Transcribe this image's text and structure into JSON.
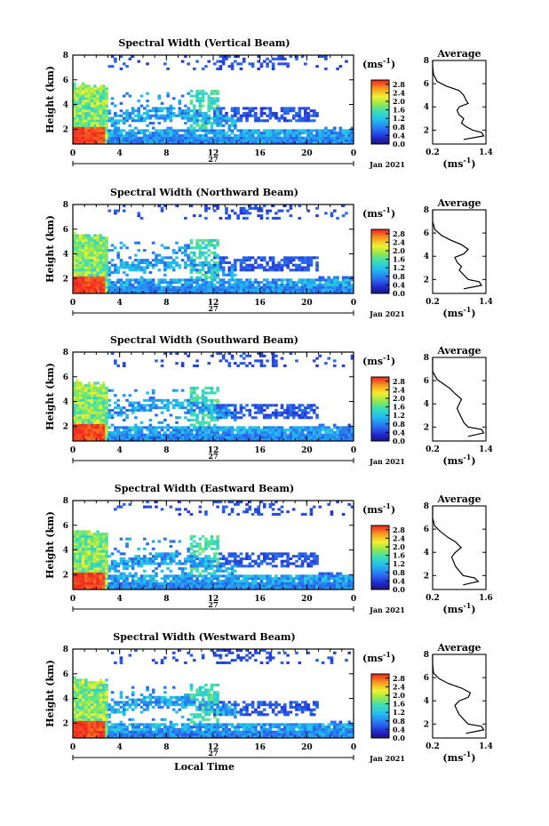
{
  "figure": {
    "xlabel": "Local Time",
    "date_label": "Jan 2021",
    "day_label": "27",
    "unit_label": "(ms",
    "unit_sup": "-1",
    "unit_close": ")"
  },
  "chart_data": [
    {
      "type": "heatmap",
      "title": "Spectral Width (Vertical Beam)",
      "ylabel": "Height (km)",
      "xlim": [
        0,
        24
      ],
      "ylim": [
        0.8,
        8
      ],
      "xticks": [
        "0",
        "4",
        "8",
        "12",
        "16",
        "20",
        "0"
      ],
      "yticks": [
        "2",
        "4",
        "6",
        "8"
      ],
      "colorbar": {
        "ticks": [
          "0.0",
          "0.4",
          "0.8",
          "1.2",
          "1.6",
          "2.0",
          "2.4",
          "2.8"
        ],
        "range": [
          0,
          3.0
        ]
      },
      "average": {
        "title": "Average",
        "xlim": [
          0.2,
          1.4
        ],
        "xticks": [
          "0.2",
          "1.4"
        ],
        "yticks": [
          "2",
          "4",
          "6",
          "8"
        ],
        "profile": [
          [
            0.9,
            1.2
          ],
          [
            1.35,
            1.5
          ],
          [
            1.3,
            1.8
          ],
          [
            1.1,
            2.0
          ],
          [
            0.95,
            2.3
          ],
          [
            0.85,
            2.6
          ],
          [
            0.9,
            3.0
          ],
          [
            0.8,
            3.3
          ],
          [
            0.75,
            3.7
          ],
          [
            0.8,
            4.0
          ],
          [
            1.0,
            4.3
          ],
          [
            0.95,
            4.6
          ],
          [
            0.9,
            5.0
          ],
          [
            0.8,
            5.4
          ],
          [
            0.5,
            5.8
          ],
          [
            0.3,
            6.2
          ],
          [
            0.22,
            6.8
          ],
          [
            0.2,
            7.5
          ],
          [
            0.2,
            8.0
          ]
        ]
      }
    },
    {
      "type": "heatmap",
      "title": "Spectral Width (Northward Beam)",
      "ylabel": "Height (km)",
      "xlim": [
        0,
        24
      ],
      "ylim": [
        0.8,
        8
      ],
      "xticks": [
        "0",
        "4",
        "8",
        "12",
        "16",
        "20",
        "0"
      ],
      "yticks": [
        "2",
        "4",
        "6",
        "8"
      ],
      "colorbar": {
        "ticks": [
          "0.0",
          "0.4",
          "0.8",
          "1.2",
          "1.6",
          "2.0",
          "2.4",
          "2.8"
        ],
        "range": [
          0,
          3.0
        ]
      },
      "average": {
        "title": "Average",
        "xlim": [
          0.2,
          1.4
        ],
        "xticks": [
          "0.2",
          "1.4"
        ],
        "yticks": [
          "2",
          "4",
          "6",
          "8"
        ],
        "profile": [
          [
            0.9,
            1.2
          ],
          [
            1.3,
            1.5
          ],
          [
            1.25,
            1.8
          ],
          [
            1.0,
            2.0
          ],
          [
            0.9,
            2.4
          ],
          [
            0.8,
            2.8
          ],
          [
            0.85,
            3.1
          ],
          [
            0.75,
            3.5
          ],
          [
            0.7,
            3.9
          ],
          [
            0.9,
            4.2
          ],
          [
            1.0,
            4.6
          ],
          [
            0.85,
            5.0
          ],
          [
            0.6,
            5.4
          ],
          [
            0.4,
            5.8
          ],
          [
            0.25,
            6.3
          ],
          [
            0.2,
            7.0
          ],
          [
            0.2,
            8.0
          ]
        ]
      }
    },
    {
      "type": "heatmap",
      "title": "Spectral Width (Southward Beam)",
      "ylabel": "Height (km)",
      "xlim": [
        0,
        24
      ],
      "ylim": [
        0.8,
        8
      ],
      "xticks": [
        "0",
        "4",
        "8",
        "12",
        "16",
        "20",
        "0"
      ],
      "yticks": [
        "2",
        "4",
        "6",
        "8"
      ],
      "colorbar": {
        "ticks": [
          "0.0",
          "0.4",
          "0.8",
          "1.2",
          "1.6",
          "2.0",
          "2.4",
          "2.8"
        ],
        "range": [
          0,
          3.0
        ]
      },
      "average": {
        "title": "Average",
        "xlim": [
          0.2,
          1.4
        ],
        "xticks": [
          "0.2",
          "1.4"
        ],
        "yticks": [
          "2",
          "4",
          "6",
          "8"
        ],
        "profile": [
          [
            1.0,
            1.2
          ],
          [
            1.35,
            1.5
          ],
          [
            1.3,
            1.8
          ],
          [
            1.0,
            2.0
          ],
          [
            0.9,
            2.4
          ],
          [
            0.85,
            2.8
          ],
          [
            0.8,
            3.2
          ],
          [
            0.75,
            3.6
          ],
          [
            0.8,
            4.0
          ],
          [
            0.85,
            4.4
          ],
          [
            0.7,
            4.9
          ],
          [
            0.6,
            5.3
          ],
          [
            0.45,
            5.7
          ],
          [
            0.3,
            6.1
          ],
          [
            0.2,
            6.8
          ],
          [
            0.2,
            8.0
          ]
        ]
      }
    },
    {
      "type": "heatmap",
      "title": "Spectral Width (Eastward Beam)",
      "ylabel": "Height (km)",
      "xlim": [
        0,
        24
      ],
      "ylim": [
        0.8,
        8
      ],
      "xticks": [
        "0",
        "4",
        "8",
        "12",
        "16",
        "20",
        "0"
      ],
      "yticks": [
        "2",
        "4",
        "6",
        "8"
      ],
      "colorbar": {
        "ticks": [
          "0.0",
          "0.4",
          "0.8",
          "1.2",
          "1.6",
          "2.0",
          "2.4",
          "2.8"
        ],
        "range": [
          0,
          3.0
        ]
      },
      "average": {
        "title": "Average",
        "xlim": [
          0.2,
          1.6
        ],
        "xticks": [
          "0.2",
          "1.6"
        ],
        "yticks": [
          "2",
          "4",
          "6",
          "8"
        ],
        "profile": [
          [
            1.0,
            1.2
          ],
          [
            1.4,
            1.5
          ],
          [
            1.3,
            1.8
          ],
          [
            1.0,
            2.0
          ],
          [
            0.9,
            2.4
          ],
          [
            0.8,
            2.8
          ],
          [
            0.75,
            3.2
          ],
          [
            0.7,
            3.6
          ],
          [
            0.8,
            4.0
          ],
          [
            0.95,
            4.4
          ],
          [
            0.8,
            4.9
          ],
          [
            0.6,
            5.3
          ],
          [
            0.4,
            5.8
          ],
          [
            0.25,
            6.3
          ],
          [
            0.2,
            7.0
          ],
          [
            0.2,
            8.0
          ]
        ]
      }
    },
    {
      "type": "heatmap",
      "title": "Spectral Width (Westward Beam)",
      "ylabel": "Height (km)",
      "xlim": [
        0,
        24
      ],
      "ylim": [
        0.8,
        8
      ],
      "xticks": [
        "0",
        "4",
        "8",
        "12",
        "16",
        "20",
        "0"
      ],
      "yticks": [
        "2",
        "4",
        "6",
        "8"
      ],
      "colorbar": {
        "ticks": [
          "0.0",
          "0.4",
          "0.8",
          "1.2",
          "1.6",
          "2.0",
          "2.4",
          "2.8"
        ],
        "range": [
          0,
          3.0
        ]
      },
      "average": {
        "title": "Average",
        "xlim": [
          0.2,
          1.4
        ],
        "xticks": [
          "0.2",
          "1.4"
        ],
        "yticks": [
          "2",
          "4",
          "6",
          "8"
        ],
        "profile": [
          [
            0.95,
            1.2
          ],
          [
            1.35,
            1.5
          ],
          [
            1.3,
            1.8
          ],
          [
            1.0,
            2.0
          ],
          [
            0.9,
            2.4
          ],
          [
            0.8,
            2.8
          ],
          [
            0.75,
            3.2
          ],
          [
            0.7,
            3.6
          ],
          [
            0.8,
            4.0
          ],
          [
            1.0,
            4.3
          ],
          [
            1.05,
            4.7
          ],
          [
            0.85,
            5.1
          ],
          [
            0.55,
            5.5
          ],
          [
            0.35,
            5.9
          ],
          [
            0.22,
            6.4
          ],
          [
            0.2,
            7.2
          ],
          [
            0.2,
            8.0
          ]
        ]
      }
    }
  ]
}
